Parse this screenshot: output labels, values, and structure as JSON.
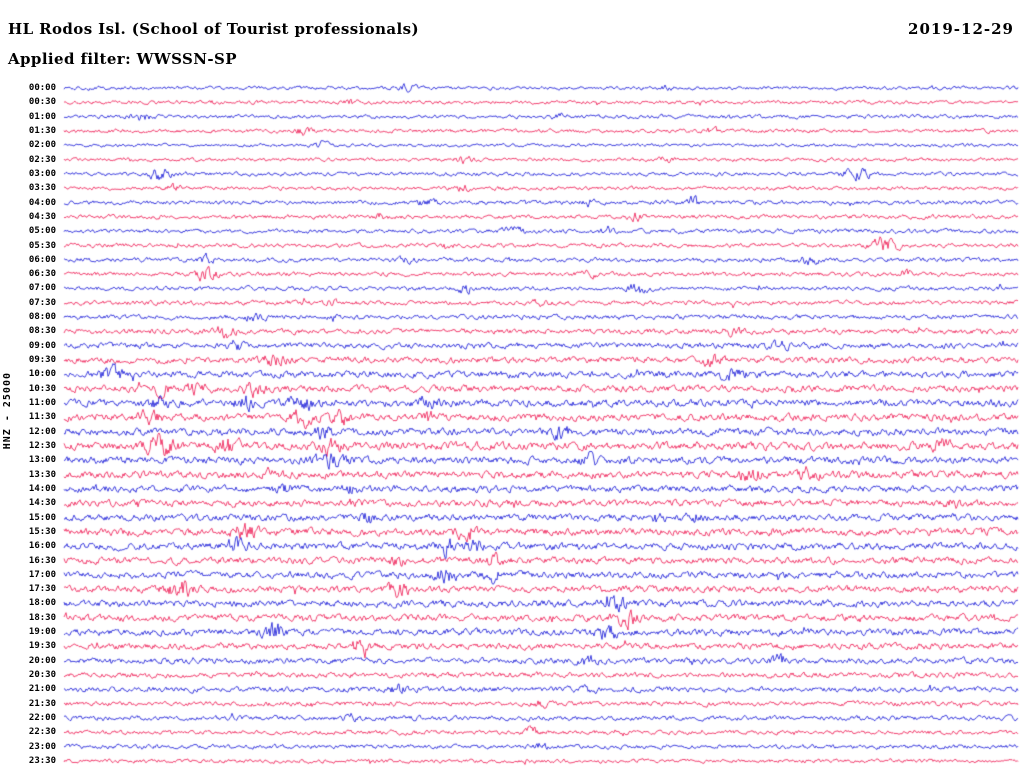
{
  "header": {
    "station_title": "HL Rodos Isl. (School of Tourist professionals)",
    "date": "2019-12-29",
    "filter_label": "Applied filter: WWSSN-SP"
  },
  "sidebar": {
    "channel_label": "HNZ - 25000"
  },
  "chart_data": {
    "type": "line",
    "subtype": "helicorder-dayplot",
    "title": "HL Rodos Isl. (School of Tourist professionals)",
    "date": "2019-12-29",
    "applied_filter": "WWSSN-SP",
    "channel": "HNZ",
    "scale": 25000,
    "minutes_per_row": 30,
    "legend_position": "none",
    "grid": false,
    "colors": {
      "even_row": "#0f10d6",
      "odd_row": "#ee114d"
    },
    "rows": [
      {
        "t": "00:00",
        "n": 1.4,
        "e": [
          [
            0.36,
            2.5,
            6
          ],
          [
            0.63,
            2,
            5
          ]
        ]
      },
      {
        "t": "00:30",
        "n": 1.4,
        "e": [
          [
            0.3,
            2,
            5
          ]
        ]
      },
      {
        "t": "01:00",
        "n": 1.5,
        "e": [
          [
            0.08,
            2.5,
            8
          ],
          [
            0.52,
            2,
            5
          ]
        ]
      },
      {
        "t": "01:30",
        "n": 1.5,
        "e": [
          [
            0.25,
            2.5,
            6
          ],
          [
            0.68,
            2,
            5
          ]
        ]
      },
      {
        "t": "02:00",
        "n": 1.3,
        "e": [
          [
            0.27,
            2.5,
            5
          ]
        ]
      },
      {
        "t": "02:30",
        "n": 1.4,
        "e": [
          [
            0.42,
            2.5,
            6
          ],
          [
            0.63,
            2,
            5
          ]
        ]
      },
      {
        "t": "03:00",
        "n": 1.5,
        "e": [
          [
            0.1,
            4.5,
            7
          ],
          [
            0.83,
            5.5,
            9
          ]
        ]
      },
      {
        "t": "03:30",
        "n": 1.5,
        "e": [
          [
            0.12,
            3.5,
            7
          ],
          [
            0.42,
            2.5,
            5
          ]
        ]
      },
      {
        "t": "04:00",
        "n": 1.7,
        "e": [
          [
            0.38,
            2.5,
            7
          ],
          [
            0.55,
            2.5,
            5
          ],
          [
            0.66,
            4.5,
            4
          ]
        ]
      },
      {
        "t": "04:30",
        "n": 1.7,
        "e": [
          [
            0.33,
            2.5,
            5
          ],
          [
            0.6,
            2.5,
            5
          ]
        ]
      },
      {
        "t": "05:00",
        "n": 1.7,
        "e": [
          [
            0.47,
            3.5,
            7
          ],
          [
            0.57,
            2.5,
            5
          ]
        ]
      },
      {
        "t": "05:30",
        "n": 1.7,
        "e": [
          [
            0.4,
            2.5,
            5
          ],
          [
            0.86,
            6,
            9
          ]
        ]
      },
      {
        "t": "06:00",
        "n": 1.7,
        "e": [
          [
            0.15,
            3.5,
            5
          ],
          [
            0.36,
            2.5,
            5
          ],
          [
            0.78,
            4.5,
            7
          ]
        ]
      },
      {
        "t": "06:30",
        "n": 1.7,
        "e": [
          [
            0.15,
            6,
            7
          ],
          [
            0.55,
            2.5,
            5
          ],
          [
            0.88,
            2.5,
            5
          ]
        ]
      },
      {
        "t": "07:00",
        "n": 1.7,
        "e": [
          [
            0.42,
            3.5,
            5
          ],
          [
            0.6,
            4.5,
            7
          ]
        ]
      },
      {
        "t": "07:30",
        "n": 1.8,
        "e": [
          [
            0.28,
            2.5,
            5
          ],
          [
            0.5,
            2.5,
            5
          ]
        ]
      },
      {
        "t": "08:00",
        "n": 1.9,
        "e": [
          [
            0.2,
            2.5,
            7
          ]
        ]
      },
      {
        "t": "08:30",
        "n": 2.1,
        "e": [
          [
            0.17,
            4.5,
            7
          ],
          [
            0.7,
            2.5,
            7
          ]
        ]
      },
      {
        "t": "09:00",
        "n": 2.3,
        "e": [
          [
            0.18,
            3.5,
            5
          ],
          [
            0.75,
            2.5,
            7
          ]
        ]
      },
      {
        "t": "09:30",
        "n": 2.5,
        "e": [
          [
            0.22,
            4.5,
            7
          ],
          [
            0.68,
            3.5,
            7
          ]
        ]
      },
      {
        "t": "10:00",
        "n": 2.7,
        "e": [
          [
            0.05,
            4.5,
            9
          ],
          [
            0.7,
            4.5,
            9
          ]
        ]
      },
      {
        "t": "10:30",
        "n": 2.7,
        "e": [
          [
            0.1,
            4.5,
            7
          ],
          [
            0.14,
            5,
            7
          ],
          [
            0.2,
            4.5,
            7
          ]
        ]
      },
      {
        "t": "11:00",
        "n": 2.9,
        "e": [
          [
            0.1,
            4.5,
            7
          ],
          [
            0.19,
            5,
            7
          ],
          [
            0.25,
            5,
            9
          ],
          [
            0.38,
            4.5,
            7
          ]
        ]
      },
      {
        "t": "11:30",
        "n": 2.9,
        "e": [
          [
            0.09,
            4.5,
            7
          ],
          [
            0.25,
            6,
            9
          ],
          [
            0.29,
            5,
            7
          ],
          [
            0.38,
            4.5,
            5
          ]
        ]
      },
      {
        "t": "12:00",
        "n": 2.9,
        "e": [
          [
            0.27,
            4.5,
            7
          ],
          [
            0.52,
            3.5,
            7
          ]
        ]
      },
      {
        "t": "12:30",
        "n": 3.1,
        "e": [
          [
            0.1,
            7,
            10
          ],
          [
            0.17,
            6,
            9
          ],
          [
            0.28,
            4.5,
            7
          ],
          [
            0.92,
            3.5,
            7
          ]
        ]
      },
      {
        "t": "13:00",
        "n": 2.9,
        "e": [
          [
            0.28,
            8,
            9
          ],
          [
            0.55,
            3.5,
            7
          ]
        ]
      },
      {
        "t": "13:30",
        "n": 2.9,
        "e": [
          [
            0.22,
            3.5,
            7
          ],
          [
            0.72,
            5,
            9
          ],
          [
            0.78,
            4.5,
            7
          ]
        ]
      },
      {
        "t": "14:00",
        "n": 2.7,
        "e": [
          [
            0.23,
            3.5,
            7
          ],
          [
            0.3,
            3.5,
            5
          ]
        ]
      },
      {
        "t": "14:30",
        "n": 2.7,
        "e": [
          [
            0.3,
            3.5,
            5
          ],
          [
            0.93,
            3.5,
            7
          ]
        ]
      },
      {
        "t": "15:00",
        "n": 2.7,
        "e": [
          [
            0.32,
            4.5,
            5
          ],
          [
            0.62,
            3.5,
            5
          ],
          [
            0.66,
            3.5,
            5
          ]
        ]
      },
      {
        "t": "15:30",
        "n": 2.9,
        "e": [
          [
            0.19,
            5,
            9
          ],
          [
            0.42,
            4.5,
            7
          ]
        ]
      },
      {
        "t": "16:00",
        "n": 2.9,
        "e": [
          [
            0.18,
            5,
            7
          ],
          [
            0.4,
            5,
            7
          ],
          [
            0.43,
            4.5,
            5
          ]
        ]
      },
      {
        "t": "16:30",
        "n": 2.7,
        "e": [
          [
            0.35,
            3.5,
            5
          ],
          [
            0.45,
            4.5,
            7
          ]
        ]
      },
      {
        "t": "17:00",
        "n": 2.7,
        "e": [
          [
            0.4,
            5,
            7
          ],
          [
            0.45,
            4.5,
            5
          ]
        ]
      },
      {
        "t": "17:30",
        "n": 2.7,
        "e": [
          [
            0.12,
            7,
            9
          ],
          [
            0.35,
            5,
            7
          ]
        ]
      },
      {
        "t": "18:00",
        "n": 2.7,
        "e": [
          [
            0.58,
            4.5,
            7
          ]
        ]
      },
      {
        "t": "18:30",
        "n": 2.7,
        "e": [
          [
            0.59,
            7,
            7
          ]
        ]
      },
      {
        "t": "19:00",
        "n": 2.7,
        "e": [
          [
            0.22,
            6,
            7
          ],
          [
            0.57,
            4.5,
            9
          ]
        ]
      },
      {
        "t": "19:30",
        "n": 2.5,
        "e": [
          [
            0.31,
            5,
            7
          ]
        ]
      },
      {
        "t": "20:00",
        "n": 2.3,
        "e": [
          [
            0.55,
            3.5,
            7
          ],
          [
            0.75,
            4.5,
            5
          ]
        ]
      },
      {
        "t": "20:30",
        "n": 2.1,
        "e": [
          [
            0.2,
            2.5,
            5
          ]
        ]
      },
      {
        "t": "21:00",
        "n": 2.1,
        "e": [
          [
            0.35,
            3.5,
            5
          ],
          [
            0.55,
            2.5,
            5
          ]
        ]
      },
      {
        "t": "21:30",
        "n": 1.9,
        "e": [
          [
            0.5,
            2.5,
            5
          ]
        ]
      },
      {
        "t": "22:00",
        "n": 1.9,
        "e": [
          [
            0.3,
            2.5,
            5
          ]
        ]
      },
      {
        "t": "22:30",
        "n": 1.7,
        "e": [
          [
            0.49,
            4.5,
            4
          ]
        ]
      },
      {
        "t": "23:00",
        "n": 1.7,
        "e": [
          [
            0.5,
            2.5,
            4
          ]
        ]
      },
      {
        "t": "23:30",
        "n": 1.5,
        "e": []
      }
    ]
  }
}
